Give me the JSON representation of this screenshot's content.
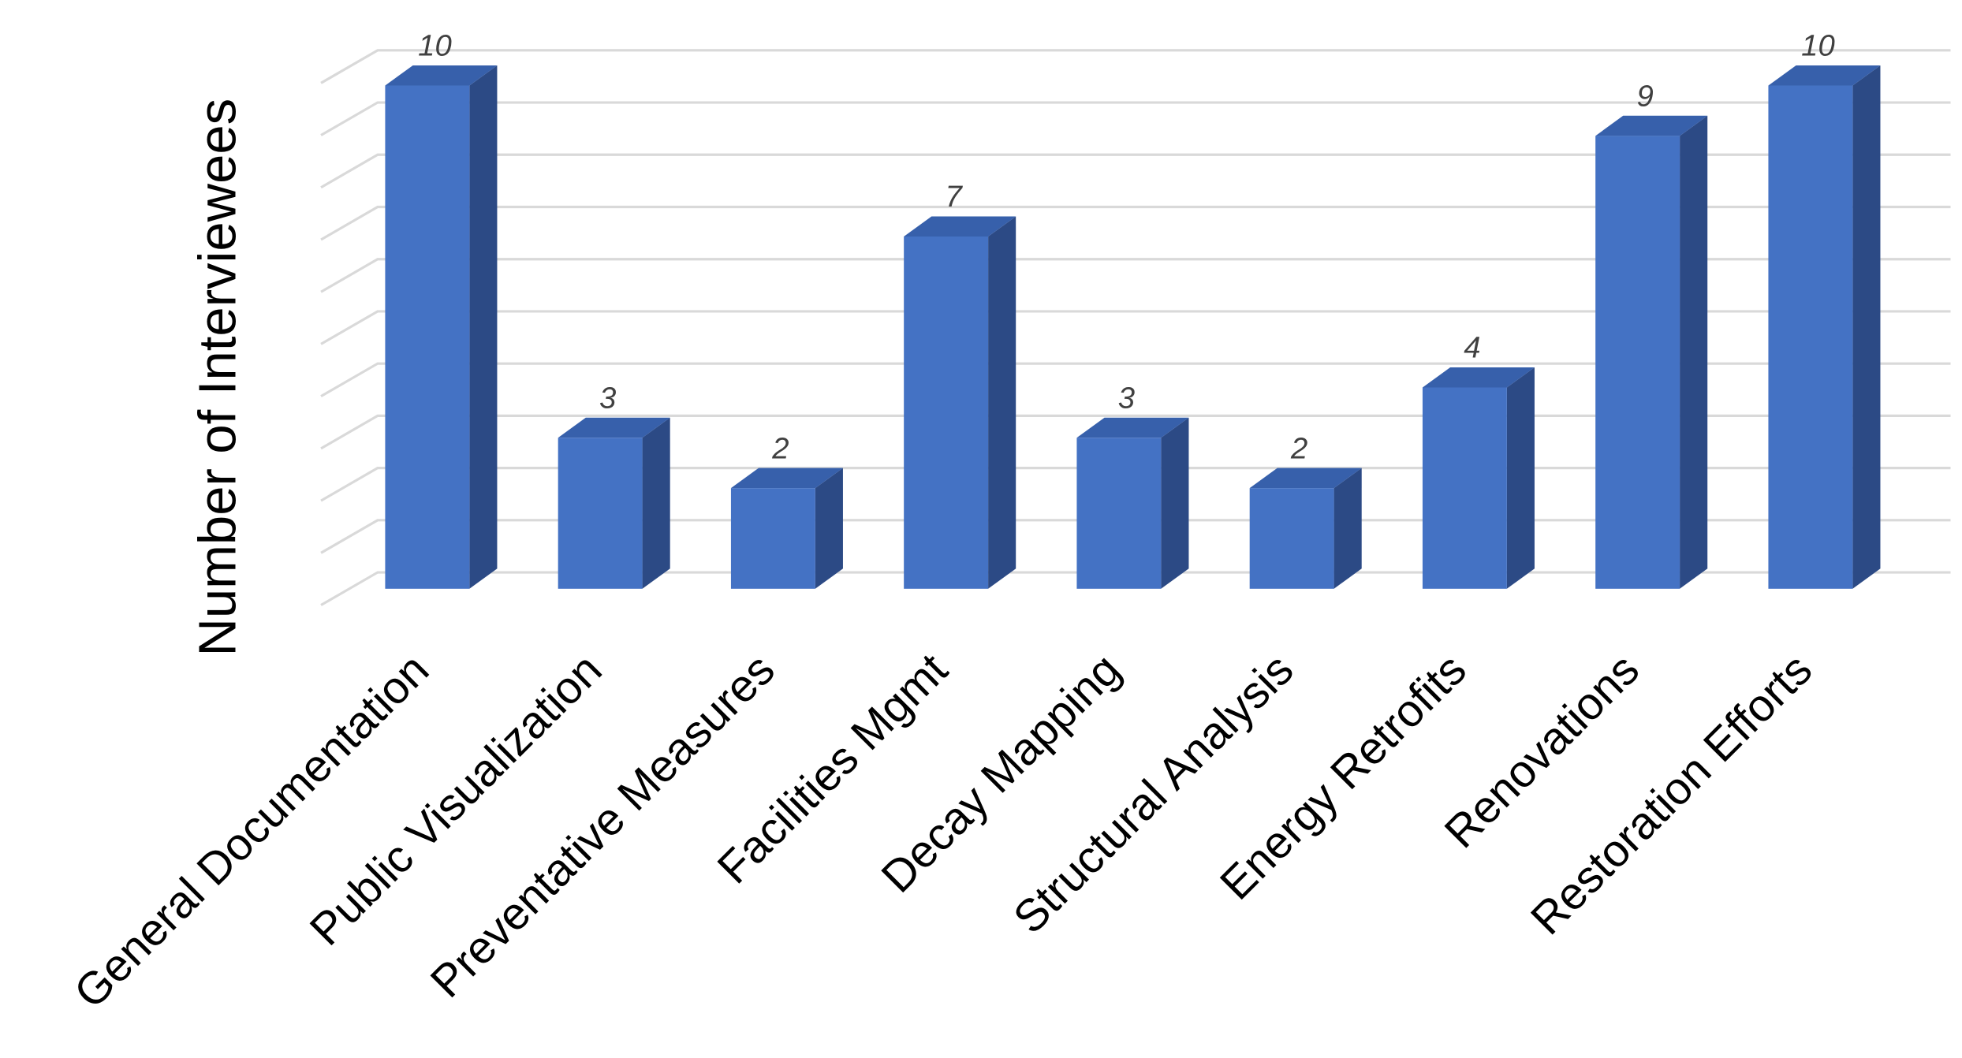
{
  "chart_data": {
    "type": "bar3d",
    "y_axis_label": "Number of Interviewees",
    "categories": [
      "General Documentation",
      "Public Visualization",
      "Preventative Measures",
      "Facilities Mgmt",
      "Decay Mapping",
      "Structural Analysis",
      "Energy Retrofits",
      "Renovations",
      "Restoration Efforts"
    ],
    "values": [
      10,
      3,
      2,
      7,
      3,
      2,
      4,
      9,
      10
    ],
    "color": "#4472c4",
    "ylim": [
      0,
      10
    ],
    "yticks": [
      0,
      1,
      2,
      3,
      4,
      5,
      6,
      7,
      8,
      9,
      10
    ],
    "tick_labels": false,
    "grid": true,
    "data_labels": true
  }
}
